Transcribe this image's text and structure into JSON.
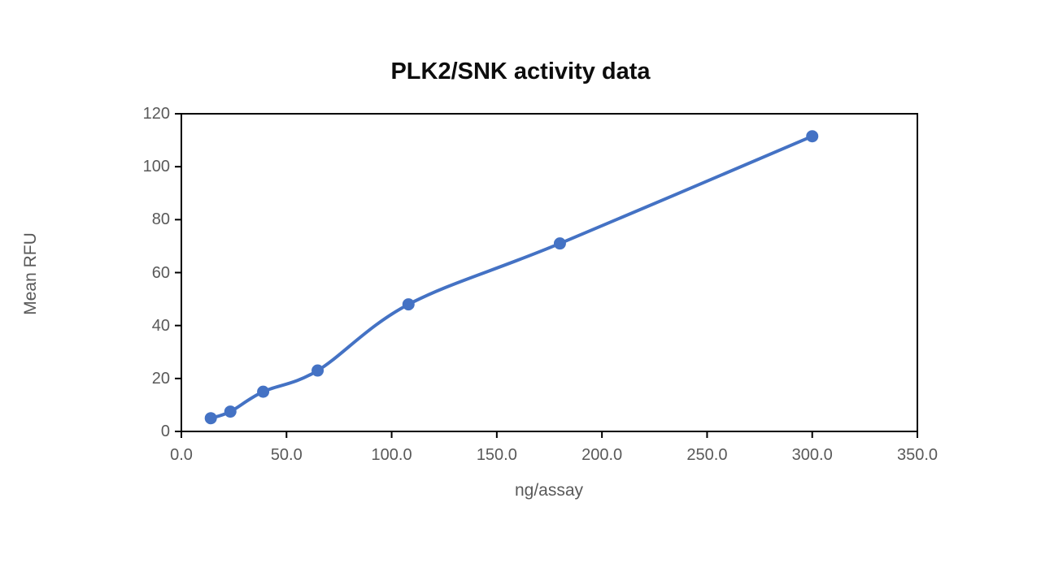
{
  "chart_data": {
    "type": "line",
    "title": "PLK2/SNK activity data",
    "xlabel": "ng/assay",
    "ylabel": "Mean RFU",
    "x": [
      14.0,
      23.3,
      38.9,
      64.8,
      108.0,
      180.0,
      300.0
    ],
    "y": [
      5,
      7.5,
      15,
      23,
      48,
      71,
      111.5
    ],
    "xlim": [
      0,
      350
    ],
    "ylim": [
      0,
      120
    ],
    "xticks": [
      0,
      50,
      100,
      150,
      200,
      250,
      300,
      350
    ],
    "xtick_labels": [
      "0.0",
      "50.0",
      "100.0",
      "150.0",
      "200.0",
      "250.0",
      "300.0",
      "350.0"
    ],
    "yticks": [
      0,
      20,
      40,
      60,
      80,
      100,
      120
    ],
    "ytick_labels": [
      "0",
      "20",
      "40",
      "60",
      "80",
      "100",
      "120"
    ],
    "grid": false,
    "legend": "none",
    "smooth_line": true,
    "line_color": "#4472C4",
    "marker_color": "#4472C4",
    "axis_line_color": "#000000",
    "tick_text_color": "#595959",
    "title_color": "#0d0d0d"
  }
}
